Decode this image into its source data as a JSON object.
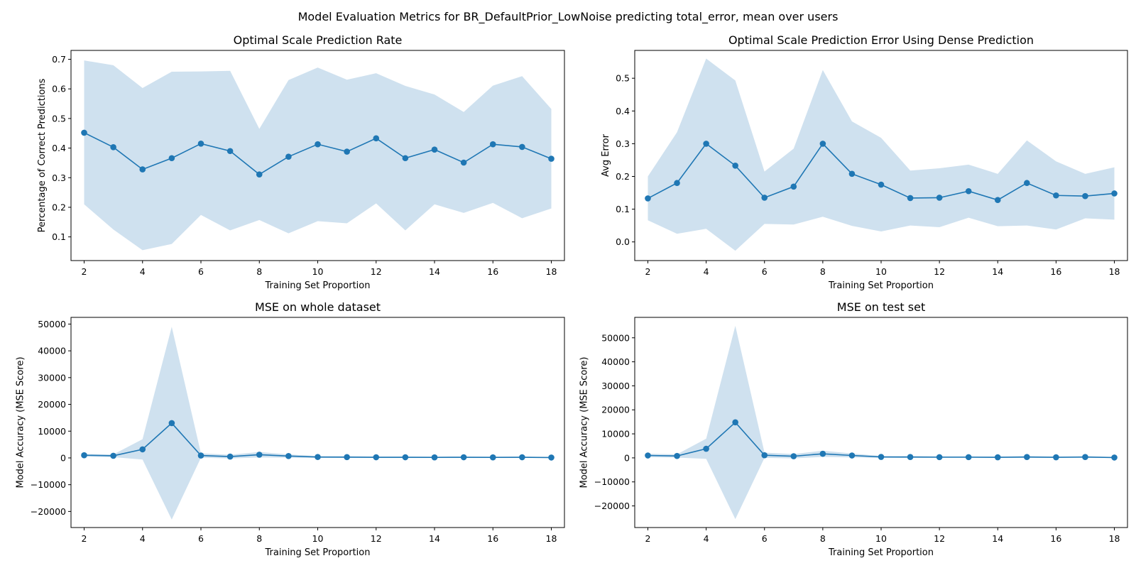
{
  "figure": {
    "suptitle": "Model Evaluation Metrics for BR_DefaultPrior_LowNoise predicting total_error, mean over users"
  },
  "colors": {
    "line": "#1f77b4",
    "band": "#cfe1ef"
  },
  "chart_data": [
    {
      "type": "line",
      "title": "Optimal Scale Prediction Rate",
      "xlabel": "Training Set Proportion",
      "ylabel": "Percentage of Correct Predictions",
      "xlim": [
        1.55,
        18.45
      ],
      "ylim": [
        0.02,
        0.73
      ],
      "xticks": [
        2,
        4,
        6,
        8,
        10,
        12,
        14,
        16,
        18
      ],
      "yticks": [
        0.1,
        0.2,
        0.3,
        0.4,
        0.5,
        0.6,
        0.7
      ],
      "ytick_labels": [
        "0.1",
        "0.2",
        "0.3",
        "0.4",
        "0.5",
        "0.6",
        "0.7"
      ],
      "x": [
        2,
        3,
        4,
        5,
        6,
        7,
        8,
        9,
        10,
        11,
        12,
        13,
        14,
        15,
        16,
        17,
        18
      ],
      "series": [
        {
          "values": [
            0.452,
            0.403,
            0.328,
            0.366,
            0.415,
            0.39,
            0.311,
            0.371,
            0.413,
            0.388,
            0.433,
            0.366,
            0.395,
            0.351,
            0.413,
            0.404,
            0.364
          ],
          "upper": [
            0.696,
            0.68,
            0.603,
            0.658,
            0.659,
            0.661,
            0.465,
            0.63,
            0.672,
            0.631,
            0.653,
            0.61,
            0.581,
            0.522,
            0.611,
            0.643,
            0.532
          ],
          "lower": [
            0.21,
            0.125,
            0.055,
            0.076,
            0.174,
            0.122,
            0.157,
            0.112,
            0.153,
            0.146,
            0.213,
            0.122,
            0.21,
            0.181,
            0.215,
            0.163,
            0.196
          ]
        }
      ]
    },
    {
      "type": "line",
      "title": "Optimal Scale Prediction Error Using Dense Prediction",
      "xlabel": "Training Set Proportion",
      "ylabel": "Avg Error",
      "xlim": [
        1.55,
        18.45
      ],
      "ylim": [
        -0.057,
        0.585
      ],
      "xticks": [
        2,
        4,
        6,
        8,
        10,
        12,
        14,
        16,
        18
      ],
      "yticks": [
        0.0,
        0.1,
        0.2,
        0.3,
        0.4,
        0.5
      ],
      "ytick_labels": [
        "0.0",
        "0.1",
        "0.2",
        "0.3",
        "0.4",
        "0.5"
      ],
      "x": [
        2,
        3,
        4,
        5,
        6,
        7,
        8,
        9,
        10,
        11,
        12,
        13,
        14,
        15,
        16,
        17,
        18
      ],
      "series": [
        {
          "values": [
            0.133,
            0.18,
            0.3,
            0.233,
            0.135,
            0.169,
            0.3,
            0.208,
            0.175,
            0.134,
            0.135,
            0.155,
            0.128,
            0.18,
            0.142,
            0.14,
            0.148
          ],
          "upper": [
            0.2,
            0.335,
            0.56,
            0.493,
            0.215,
            0.285,
            0.525,
            0.368,
            0.318,
            0.218,
            0.225,
            0.236,
            0.208,
            0.31,
            0.246,
            0.208,
            0.228
          ],
          "lower": [
            0.066,
            0.025,
            0.04,
            -0.027,
            0.055,
            0.053,
            0.077,
            0.049,
            0.032,
            0.05,
            0.045,
            0.074,
            0.048,
            0.05,
            0.038,
            0.072,
            0.068
          ]
        }
      ]
    },
    {
      "type": "line",
      "title": "MSE on whole dataset",
      "xlabel": "Training Set Proportion",
      "ylabel": "Model Accuracy (MSE Score)",
      "xlim": [
        1.55,
        18.45
      ],
      "ylim": [
        -26000,
        52500
      ],
      "xticks": [
        2,
        4,
        6,
        8,
        10,
        12,
        14,
        16,
        18
      ],
      "yticks": [
        -20000,
        -10000,
        0,
        10000,
        20000,
        30000,
        40000,
        50000
      ],
      "ytick_labels": [
        "−20000",
        "−10000",
        "0",
        "10000",
        "20000",
        "30000",
        "40000",
        "50000"
      ],
      "x": [
        2,
        3,
        4,
        5,
        6,
        7,
        8,
        9,
        10,
        11,
        12,
        13,
        14,
        15,
        16,
        17,
        18
      ],
      "series": [
        {
          "values": [
            1000,
            800,
            3200,
            13000,
            900,
            500,
            1200,
            700,
            350,
            300,
            250,
            250,
            200,
            250,
            200,
            250,
            150
          ],
          "upper": [
            1500,
            1300,
            7000,
            49000,
            1700,
            1200,
            2200,
            1300,
            700,
            600,
            500,
            500,
            400,
            500,
            400,
            500,
            300
          ],
          "lower": [
            500,
            300,
            -600,
            -23000,
            100,
            -200,
            200,
            100,
            0,
            0,
            0,
            0,
            0,
            0,
            0,
            0,
            0
          ]
        }
      ]
    },
    {
      "type": "line",
      "title": "MSE on test set",
      "xlabel": "Training Set Proportion",
      "ylabel": "Model Accuracy (MSE Score)",
      "xlim": [
        1.55,
        18.45
      ],
      "ylim": [
        -29000,
        58500
      ],
      "xticks": [
        2,
        4,
        6,
        8,
        10,
        12,
        14,
        16,
        18
      ],
      "yticks": [
        -20000,
        -10000,
        0,
        10000,
        20000,
        30000,
        40000,
        50000
      ],
      "ytick_labels": [
        "−20000",
        "−10000",
        "0",
        "10000",
        "20000",
        "30000",
        "40000",
        "50000"
      ],
      "x": [
        2,
        3,
        4,
        5,
        6,
        7,
        8,
        9,
        10,
        11,
        12,
        13,
        14,
        15,
        16,
        17,
        18
      ],
      "series": [
        {
          "values": [
            1000,
            800,
            3800,
            14800,
            1100,
            700,
            1700,
            1000,
            400,
            350,
            300,
            300,
            250,
            350,
            250,
            350,
            150
          ],
          "upper": [
            1700,
            1500,
            8000,
            55000,
            2200,
            1600,
            3000,
            1800,
            800,
            700,
            600,
            600,
            500,
            700,
            500,
            700,
            300
          ],
          "lower": [
            300,
            100,
            -400,
            -25500,
            0,
            -200,
            400,
            200,
            0,
            0,
            0,
            0,
            0,
            0,
            0,
            0,
            0
          ]
        }
      ]
    }
  ]
}
